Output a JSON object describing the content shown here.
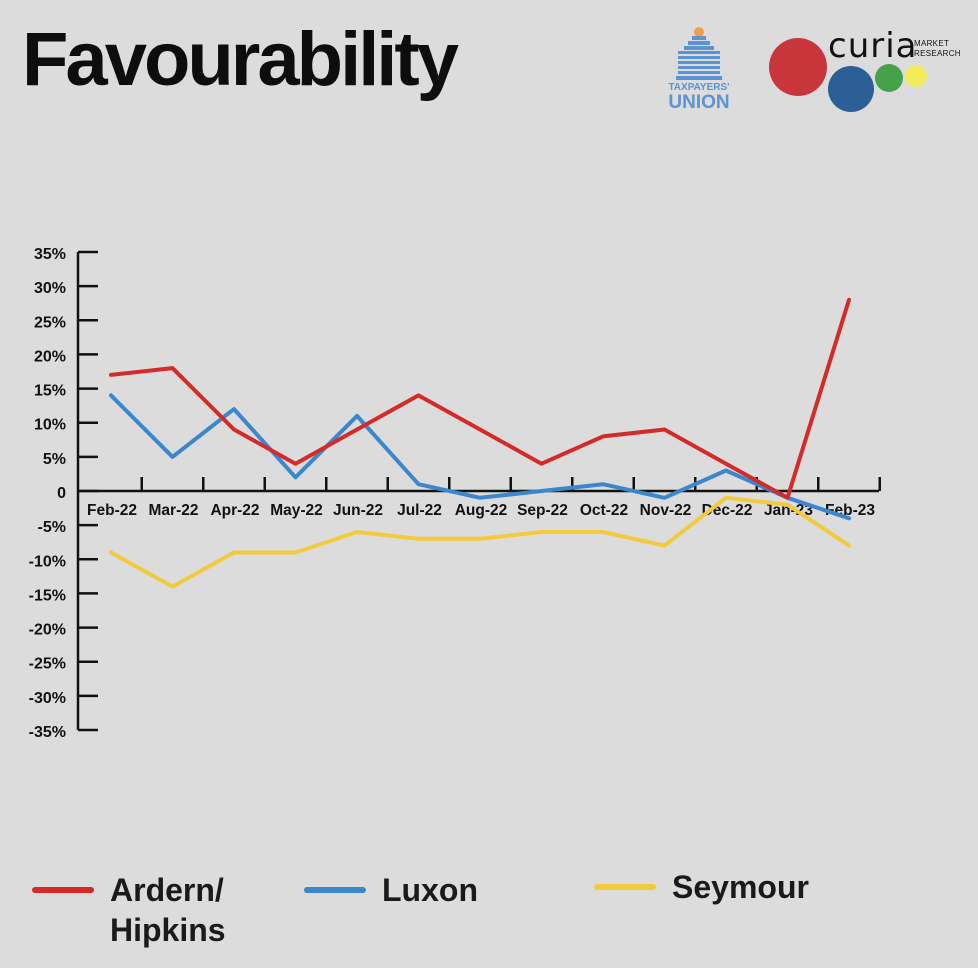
{
  "header": {
    "title": "Favourability"
  },
  "logos": {
    "taxpayers_union": {
      "line1": "TAXPAYERS'",
      "line2": "UNION"
    },
    "curia": {
      "word": "curia",
      "sub1": "MARKET",
      "sub2": "RESEARCH"
    }
  },
  "colors": {
    "background": "#dcdcdc",
    "ardern": "#d42a2a",
    "luxon": "#3b86cc",
    "seymour": "#f2cb3c"
  },
  "chart_data": {
    "type": "line",
    "title": "Favourability",
    "categories": [
      "Feb-22",
      "Mar-22",
      "Apr-22",
      "May-22",
      "Jun-22",
      "Jul-22",
      "Aug-22",
      "Sep-22",
      "Oct-22",
      "Nov-22",
      "Dec-22",
      "Jan-23",
      "Feb-23"
    ],
    "y_ticks": [
      "35%",
      "30%",
      "25%",
      "20%",
      "15%",
      "10%",
      "5%",
      "0",
      "-5%",
      "-10%",
      "-15%",
      "-20%",
      "-25%",
      "-30%",
      "-35%"
    ],
    "ylim": [
      -35,
      35
    ],
    "grid": false,
    "legend_position": "bottom",
    "series": [
      {
        "name": "Ardern/ Hipkins",
        "legend_line1": "Ardern/",
        "legend_line2": "Hipkins",
        "color": "#d42a2a",
        "values": [
          17,
          18,
          9,
          4,
          9,
          14,
          9,
          4,
          8,
          9,
          4,
          -1,
          28
        ]
      },
      {
        "name": "Luxon",
        "color": "#3b86cc",
        "values": [
          14,
          5,
          12,
          2,
          11,
          1,
          -1,
          0,
          1,
          -1,
          3,
          -1,
          -4
        ]
      },
      {
        "name": "Seymour",
        "color": "#f2cb3c",
        "values": [
          -9,
          -14,
          -9,
          -9,
          -6,
          -7,
          -7,
          -6,
          -6,
          -8,
          -1,
          -2,
          -8
        ]
      }
    ]
  }
}
